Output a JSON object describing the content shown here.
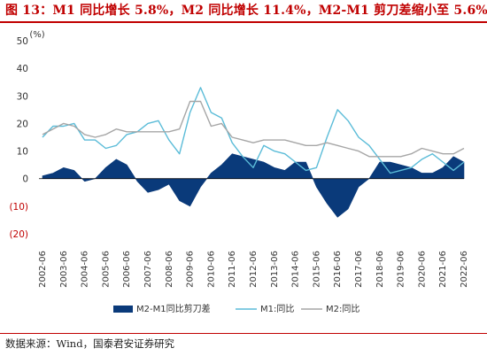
{
  "title": "图 13：M1 同比增长 5.8%，M2 同比增长 11.4%，M2-M1 剪刀差缩小至 5.6%",
  "source": "数据来源：Wind，国泰君安证券研究",
  "colors": {
    "title": "#c00000",
    "bar": "#0a3a7a",
    "m1": "#5bbcd8",
    "m2": "#a6a6a6",
    "neg_label": "#c00000"
  },
  "chart_data": {
    "type": "area",
    "y_unit": "(%)",
    "ylim": [
      -20,
      50
    ],
    "yticks": [
      -20,
      -10,
      0,
      10,
      20,
      30,
      40,
      50
    ],
    "ytick_labels": [
      "(20)",
      "(10)",
      "0",
      "10",
      "20",
      "30",
      "40",
      "50"
    ],
    "xticks": [
      "2002-06",
      "2003-06",
      "2004-06",
      "2005-06",
      "2006-06",
      "2007-06",
      "2008-06",
      "2009-06",
      "2010-06",
      "2011-06",
      "2012-06",
      "2013-06",
      "2014-06",
      "2015-06",
      "2016-06",
      "2017-06",
      "2018-06",
      "2019-06",
      "2020-06",
      "2021-06",
      "2022-06"
    ],
    "grid": false,
    "legend_position": "bottom",
    "x": [
      "2002-06",
      "2002-12",
      "2003-06",
      "2003-12",
      "2004-06",
      "2004-12",
      "2005-06",
      "2005-12",
      "2006-06",
      "2006-12",
      "2007-06",
      "2007-12",
      "2008-06",
      "2008-12",
      "2009-06",
      "2009-12",
      "2010-06",
      "2010-12",
      "2011-06",
      "2011-12",
      "2012-06",
      "2012-12",
      "2013-06",
      "2013-12",
      "2014-06",
      "2014-12",
      "2015-06",
      "2015-12",
      "2016-06",
      "2016-12",
      "2017-06",
      "2017-12",
      "2018-06",
      "2018-12",
      "2019-06",
      "2019-12",
      "2020-06",
      "2020-12",
      "2021-06",
      "2021-12",
      "2022-06"
    ],
    "series": [
      {
        "name": "M2-M1同比剪刀差",
        "kind": "area",
        "values": [
          1,
          2,
          4,
          3,
          -1,
          0,
          4,
          7,
          5,
          -1,
          -5,
          -4,
          -2,
          -8,
          -10,
          -3,
          2,
          5,
          9,
          8,
          7,
          6,
          4,
          3,
          6,
          6,
          -3,
          -9,
          -14,
          -11,
          -3,
          0,
          6,
          6,
          5,
          4,
          2,
          2,
          4,
          8,
          6
        ]
      },
      {
        "name": "M1:同比",
        "kind": "line",
        "values": [
          15,
          19,
          19,
          20,
          14,
          14,
          11,
          12,
          16,
          17,
          20,
          21,
          14,
          9,
          24,
          33,
          24,
          22,
          13,
          8,
          4,
          12,
          10,
          9,
          6,
          3,
          4,
          15,
          25,
          21,
          15,
          12,
          7,
          2,
          3,
          4,
          7,
          9,
          6,
          3,
          6
        ]
      },
      {
        "name": "M2:同比",
        "kind": "line",
        "values": [
          16,
          18,
          20,
          19,
          16,
          15,
          16,
          18,
          17,
          17,
          17,
          17,
          17,
          18,
          28,
          28,
          19,
          20,
          15,
          14,
          13,
          14,
          14,
          14,
          13,
          12,
          12,
          13,
          12,
          11,
          10,
          8,
          8,
          8,
          8,
          9,
          11,
          10,
          9,
          9,
          11
        ]
      }
    ]
  }
}
